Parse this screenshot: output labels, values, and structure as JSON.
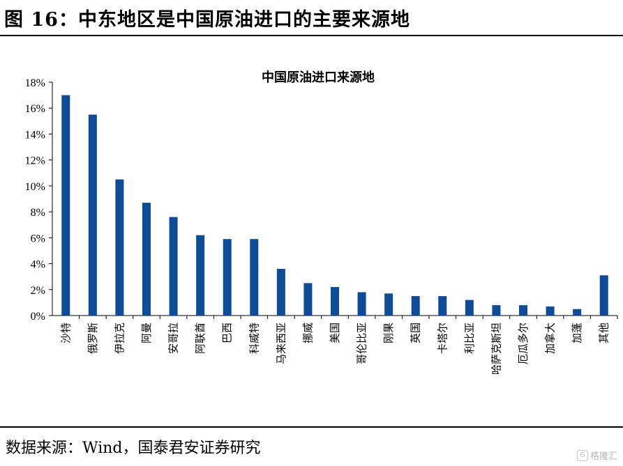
{
  "figure": {
    "title": "图 16：中东地区是中国原油进口的主要来源地",
    "source": "数据来源：Wind，国泰君安证券研究",
    "watermark": "格隆汇"
  },
  "chart_data": {
    "type": "bar",
    "title": "中国原油进口来源地",
    "xlabel": "",
    "ylabel": "",
    "categories": [
      "沙特",
      "俄罗斯",
      "伊拉克",
      "阿曼",
      "安哥拉",
      "阿联酋",
      "巴西",
      "科威特",
      "马来西亚",
      "挪威",
      "美国",
      "哥伦比亚",
      "刚果",
      "英国",
      "卡塔尔",
      "利比亚",
      "哈萨克斯坦",
      "厄瓜多尔",
      "加拿大",
      "加蓬",
      "其他"
    ],
    "values": [
      17.0,
      15.5,
      10.5,
      8.7,
      7.6,
      6.2,
      5.9,
      5.9,
      3.6,
      2.5,
      2.2,
      1.8,
      1.7,
      1.5,
      1.5,
      1.2,
      0.8,
      0.8,
      0.7,
      0.5,
      3.1
    ],
    "unit": "%",
    "ylim": [
      0,
      18
    ],
    "yticks": [
      "0%",
      "2%",
      "4%",
      "6%",
      "8%",
      "10%",
      "12%",
      "14%",
      "16%",
      "18%"
    ],
    "grid": false,
    "legend": "none",
    "bar_color": "#0F4C97"
  }
}
